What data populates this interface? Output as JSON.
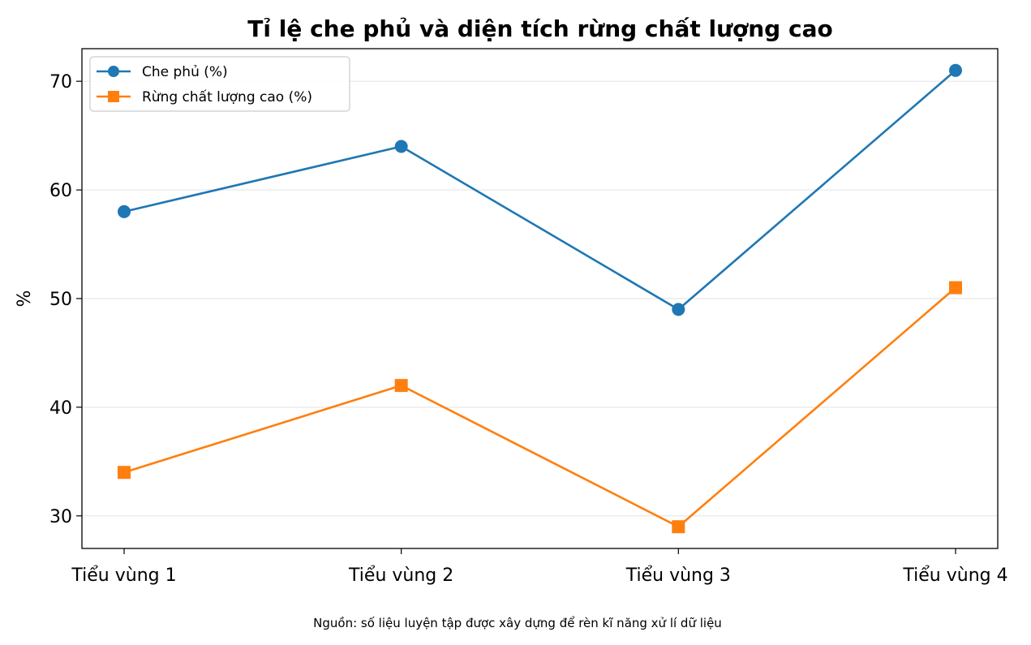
{
  "chart_data": {
    "type": "line",
    "title": "Tỉ lệ che phủ và diện tích rừng chất lượng cao",
    "xlabel": "",
    "ylabel": "%",
    "categories": [
      "Tiểu vùng 1",
      "Tiểu vùng 2",
      "Tiểu vùng 3",
      "Tiểu vùng 4"
    ],
    "series": [
      {
        "name": "Che phủ (%)",
        "values": [
          58,
          64,
          49,
          71
        ],
        "color": "#1f77b4",
        "marker": "circle"
      },
      {
        "name": "Rừng chất lượng cao (%)",
        "values": [
          34,
          42,
          29,
          51
        ],
        "color": "#ff7f0e",
        "marker": "square"
      }
    ],
    "ylim": [
      27,
      73
    ],
    "yticks": [
      30,
      40,
      50,
      60,
      70
    ],
    "grid": "y",
    "legend": "top-left",
    "source_note": "Nguồn: số liệu luyện tập được xây dựng để rèn kĩ năng xử lí dữ liệu"
  }
}
